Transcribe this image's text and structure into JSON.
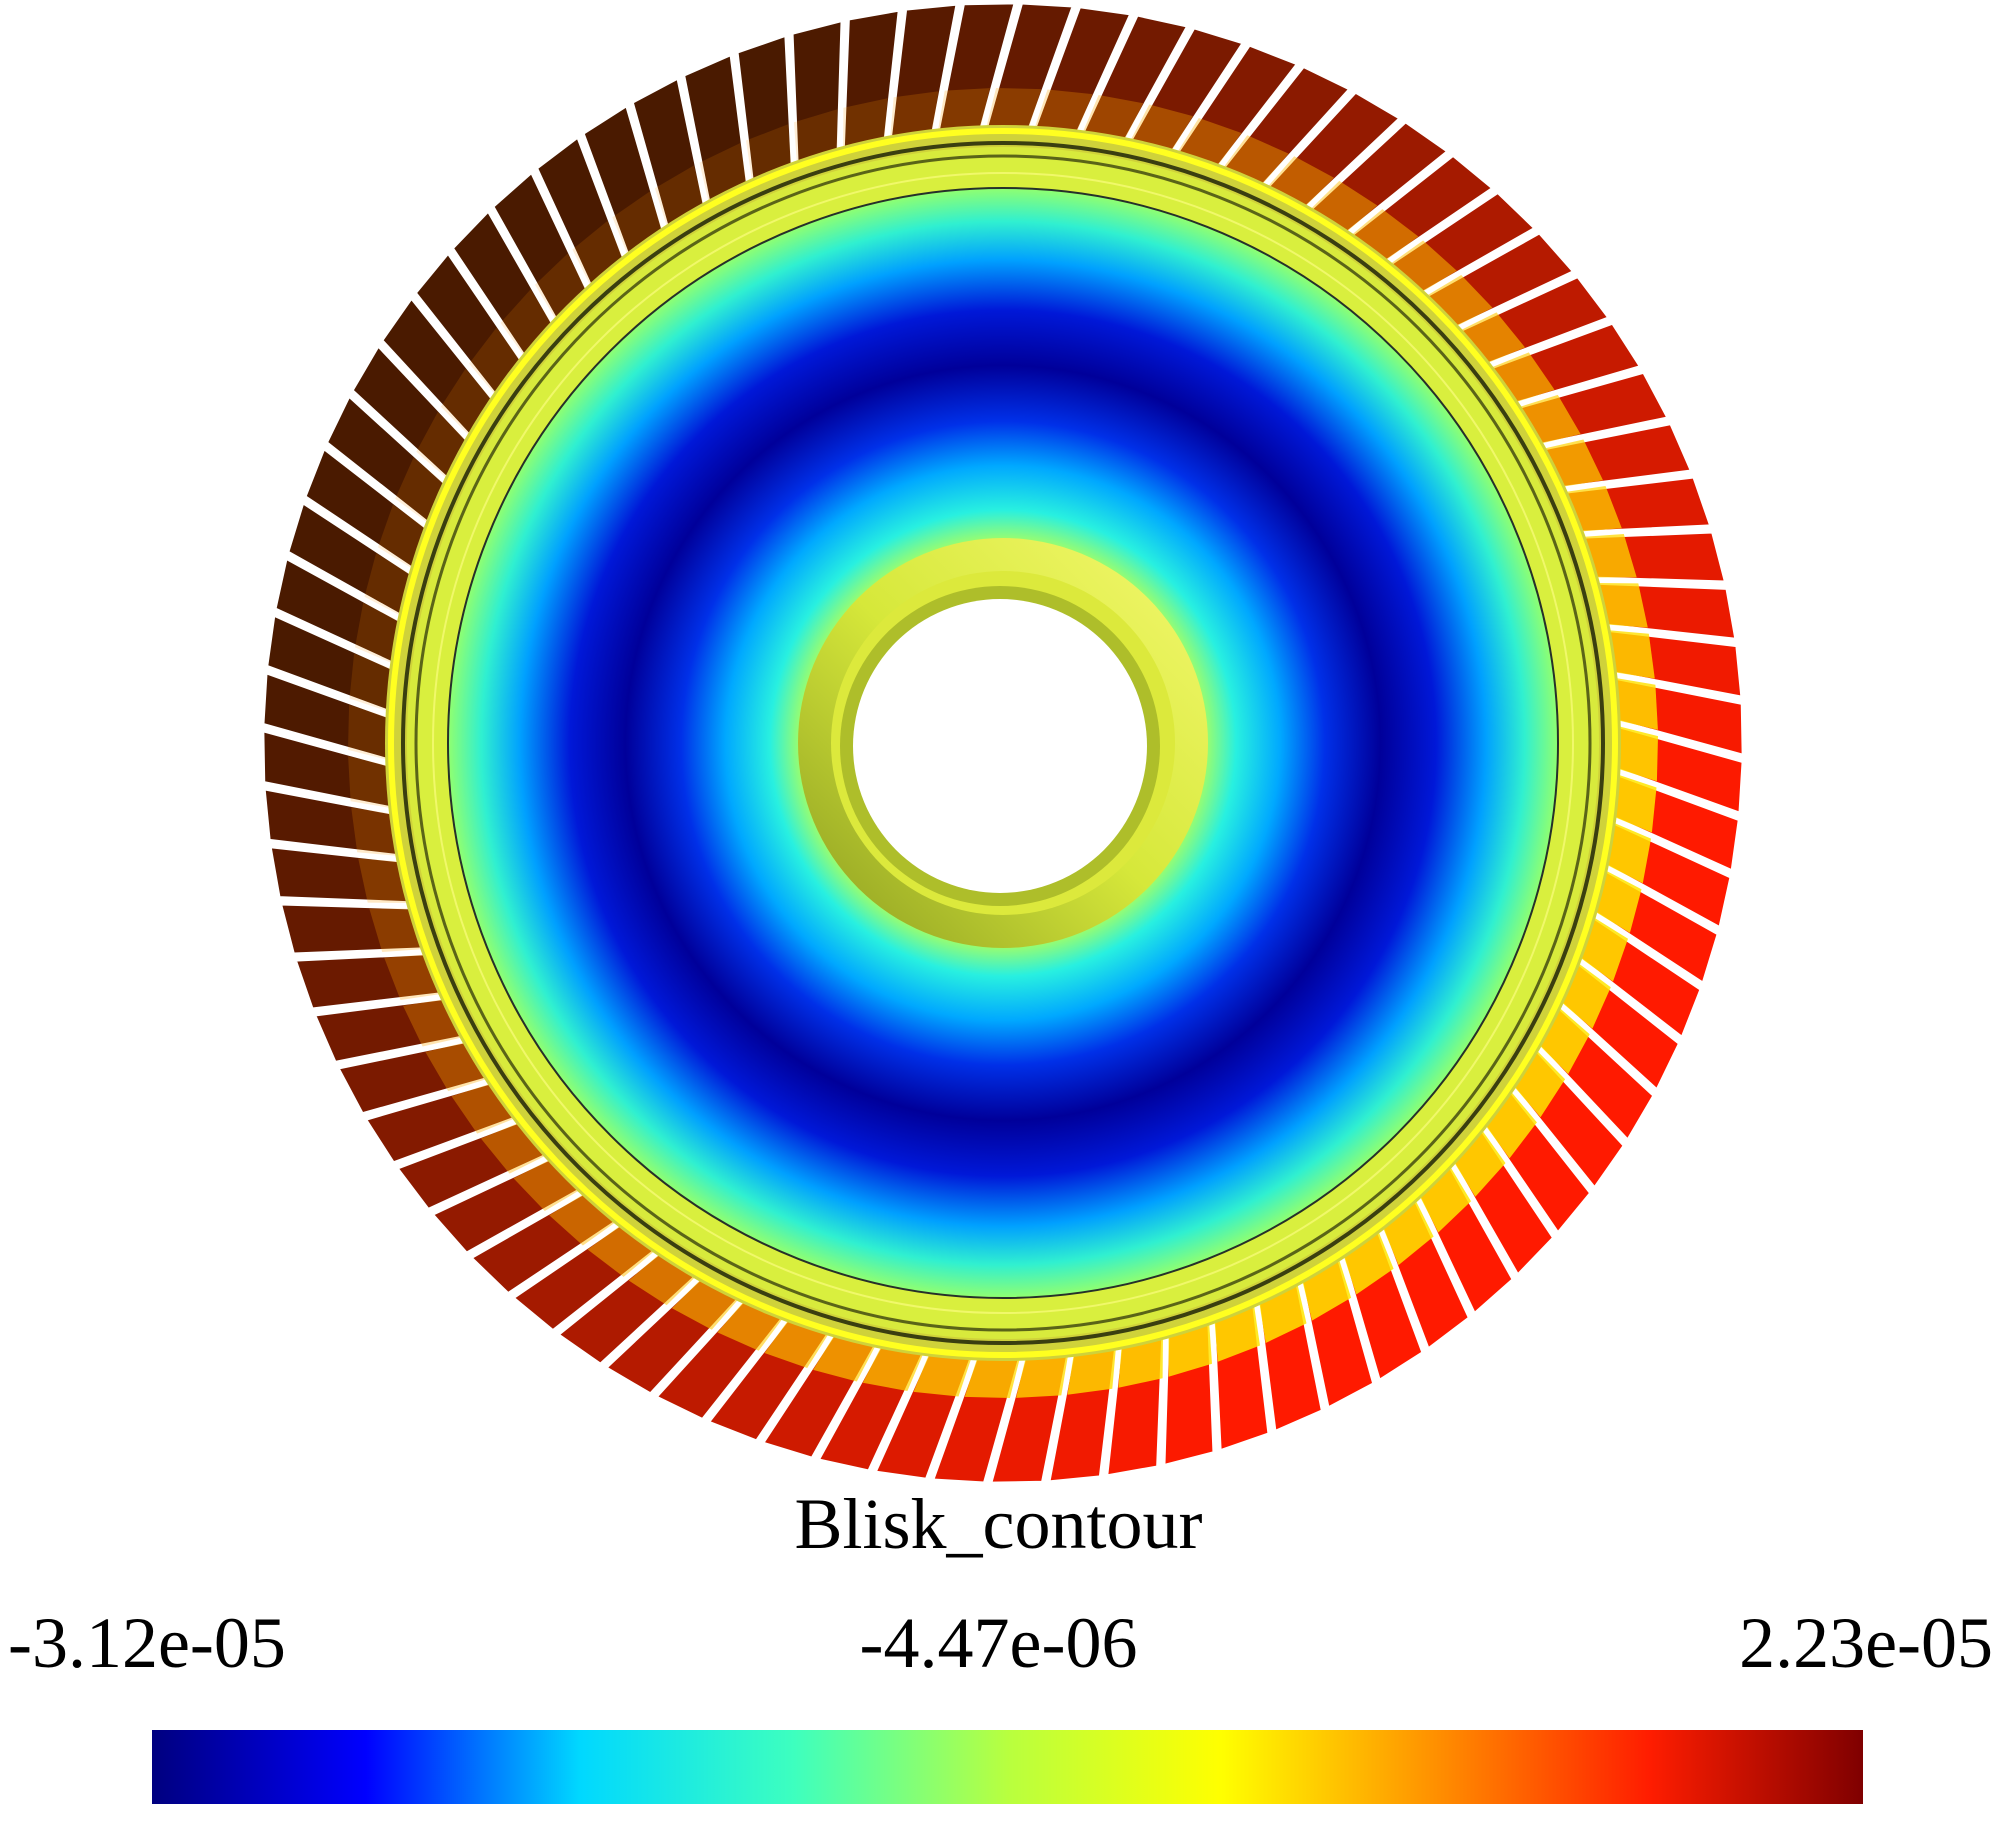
{
  "title": "Blisk_contour",
  "colorbar": {
    "min_label": "-3.12e-05",
    "mid_label": "-4.47e-06",
    "max_label": "2.23e-05",
    "min": -3.12e-05,
    "mid": -4.47e-06,
    "max": 2.23e-05,
    "colormap": [
      "#00007f",
      "#0000ff",
      "#00d8ff",
      "#3dffbf",
      "#b8ff3f",
      "#ffff00",
      "#ff9000",
      "#ff1d00",
      "#7f0000"
    ]
  },
  "colors": {
    "hub": "#e0f03a",
    "disk_low": "#00008c",
    "disk_mid": "#27f0d8",
    "blade_low": "#4a1a00",
    "blade_high": "#ff1a00"
  },
  "model": {
    "part": "blisk",
    "blade_count": 80
  }
}
